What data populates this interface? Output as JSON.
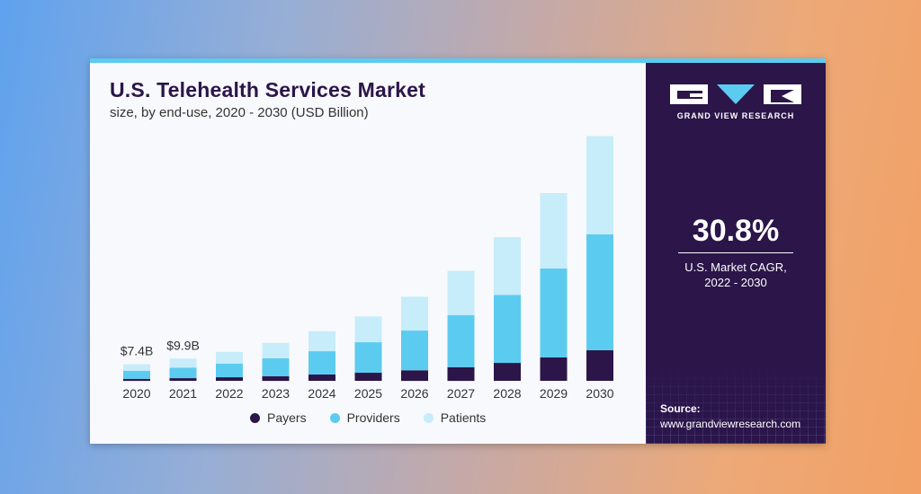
{
  "card": {
    "title": "U.S. Telehealth Services Market",
    "subtitle": "size, by end-use, 2020 - 2030 (USD Billion)"
  },
  "brand": {
    "name": "GRAND VIEW RESEARCH",
    "logo_icon": "gvr-logo-icon"
  },
  "stat": {
    "value": "30.8%",
    "label_line1": "U.S. Market CAGR,",
    "label_line2": "2022 - 2030"
  },
  "source": {
    "label": "Source:",
    "url": "www.grandviewresearch.com"
  },
  "colors": {
    "payers": "#2b1549",
    "providers": "#5ccbf0",
    "patients": "#c7ecfa",
    "panel": "#2b1549",
    "accent_strip": "#5ccbf0"
  },
  "chart_data": {
    "type": "bar",
    "stacked": true,
    "title": "U.S. Telehealth Services Market",
    "subtitle": "size, by end-use, 2020 - 2030 (USD Billion)",
    "categories": [
      "2020",
      "2021",
      "2022",
      "2023",
      "2024",
      "2025",
      "2026",
      "2027",
      "2028",
      "2029",
      "2030"
    ],
    "series": [
      {
        "name": "Payers",
        "values": [
          0.9,
          1.2,
          1.6,
          2.1,
          2.8,
          3.6,
          4.7,
          6.1,
          8.0,
          10.4,
          13.6
        ]
      },
      {
        "name": "Providers",
        "values": [
          3.6,
          4.7,
          6.1,
          8.0,
          10.4,
          13.6,
          17.7,
          23.2,
          30.3,
          39.6,
          51.6
        ]
      },
      {
        "name": "Patients",
        "values": [
          2.9,
          4.0,
          5.2,
          6.8,
          8.9,
          11.5,
          15.1,
          19.7,
          25.7,
          33.6,
          43.8
        ]
      }
    ],
    "data_labels": [
      {
        "category": "2020",
        "text": "$7.4B"
      },
      {
        "category": "2021",
        "text": "$9.9B"
      }
    ],
    "ylim": [
      0,
      110
    ],
    "grid": false,
    "legend": "bottom"
  }
}
